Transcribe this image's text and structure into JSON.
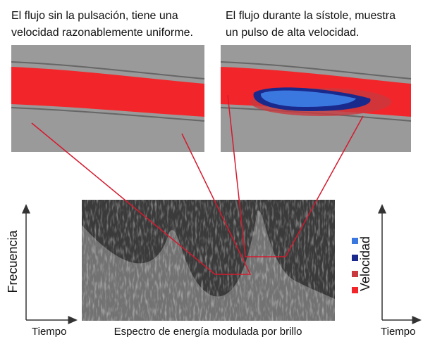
{
  "captions": [
    {
      "lines": [
        "El flujo sin la pulsación, tiene una",
        "velocidad razonablemente uniforme."
      ]
    },
    {
      "lines": [
        "El flujo durante la sístole, muestra",
        "un pulso de alta velocidad."
      ]
    }
  ],
  "left_axis": {
    "y_label": "Frecuencia",
    "x_label": "Tiempo"
  },
  "spectrum_label": "Espectro de energía modulada por brillo",
  "right_axis": {
    "y_label": "Velocidad",
    "x_label": "Tiempo"
  }
}
